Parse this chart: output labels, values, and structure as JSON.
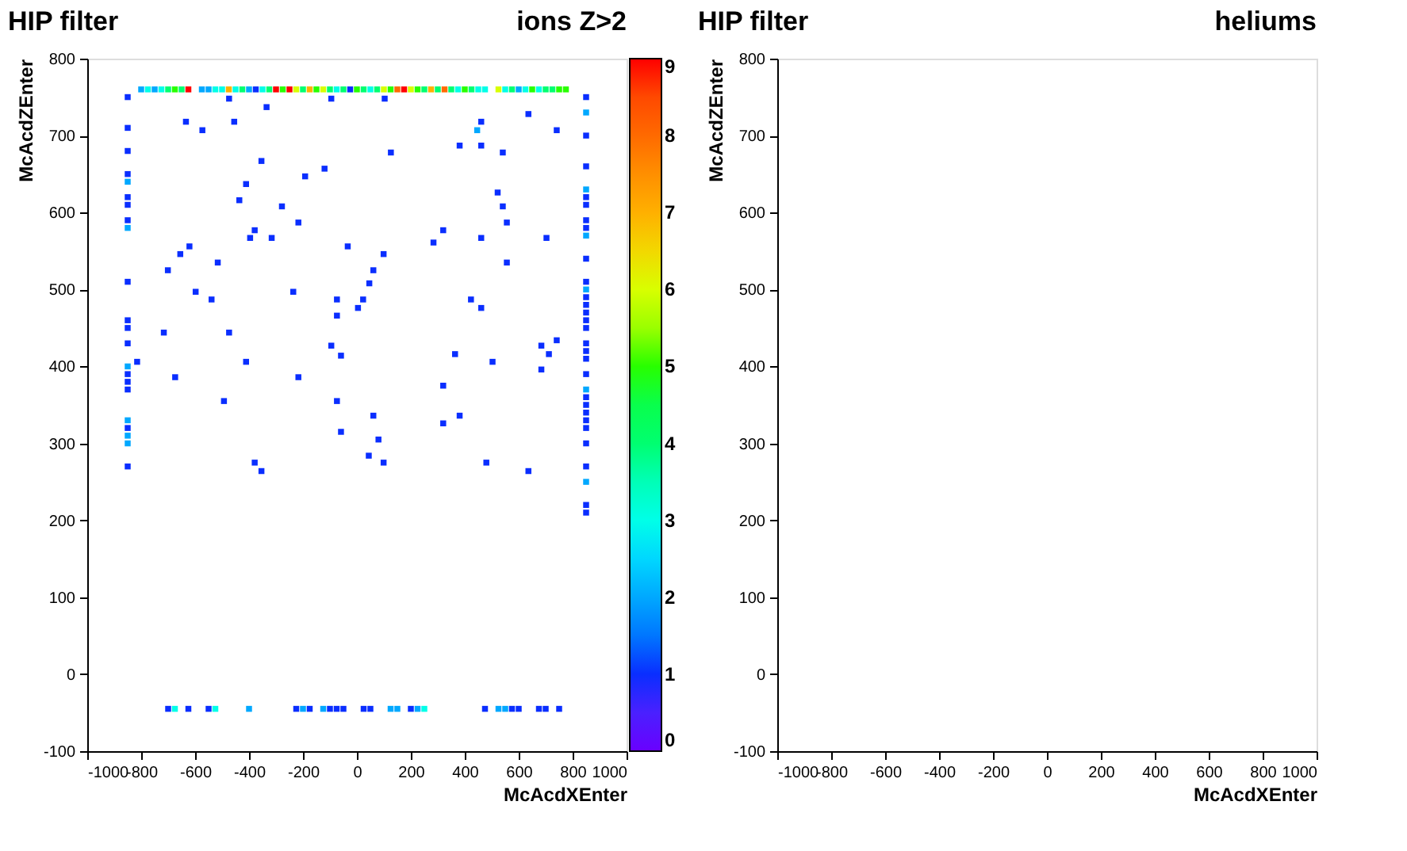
{
  "chart_data": [
    {
      "type": "scatter",
      "title": "HIP filter",
      "annotations": [
        "ions Z>2"
      ],
      "xlabel": "McAcdXEnter",
      "ylabel": "McAcdZEnter",
      "marker": "square",
      "xlim": [
        -1000,
        1000
      ],
      "xticks": [
        -1000,
        -800,
        -600,
        -400,
        -200,
        0,
        200,
        400,
        600,
        800,
        1000
      ],
      "ylim": [
        -100,
        800
      ],
      "yticks": [
        -100,
        0,
        100,
        200,
        300,
        400,
        500,
        600,
        700,
        800
      ],
      "clim": [
        0,
        9
      ],
      "cticks": [
        0,
        1,
        2,
        3,
        4,
        5,
        6,
        7,
        8,
        9
      ],
      "x": [
        -800,
        -775,
        -750,
        -725,
        -700,
        -675,
        -650,
        -625,
        -575,
        -550,
        -525,
        -500,
        -475,
        -450,
        -425,
        -400,
        -375,
        -350,
        -325,
        -300,
        -275,
        -250,
        -225,
        -200,
        -175,
        -150,
        -125,
        -100,
        -75,
        -50,
        -25,
        0,
        25,
        50,
        75,
        100,
        125,
        150,
        175,
        200,
        225,
        250,
        275,
        300,
        325,
        350,
        375,
        400,
        425,
        450,
        475,
        525,
        550,
        575,
        600,
        625,
        650,
        675,
        700,
        725,
        750,
        775,
        -700,
        -675,
        -625,
        -550,
        -525,
        -400,
        -225,
        -200,
        -175,
        -125,
        -100,
        -75,
        -50,
        25,
        50,
        125,
        150,
        200,
        225,
        250,
        475,
        525,
        550,
        575,
        600,
        675,
        700,
        750,
        -850,
        -850,
        -850,
        -850,
        -850,
        -850,
        -850,
        -850,
        -850,
        -850,
        -850,
        -850,
        -850,
        -850,
        -850,
        -850,
        -850,
        -850,
        -850,
        -850,
        -850,
        -850,
        850,
        850,
        850,
        850,
        850,
        850,
        850,
        850,
        850,
        850,
        850,
        850,
        850,
        850,
        850,
        850,
        850,
        850,
        850,
        850,
        850,
        850,
        850,
        850,
        850,
        850,
        850,
        850,
        850,
        850,
        850,
        850,
        850,
        -474,
        -335,
        -95,
        103,
        -634,
        -573,
        -455,
        636,
        461,
        446,
        741,
        -354,
        126,
        381,
        461,
        541,
        -192,
        -120,
        -411,
        -436,
        -278,
        522,
        541,
        -379,
        -217,
        556,
        -396,
        -316,
        703,
        320,
        284,
        461,
        -621,
        -655,
        -34,
        99,
        -701,
        -516,
        61,
        556,
        -598,
        -236,
        -539,
        -74,
        23,
        46,
        423,
        461,
        4,
        -74,
        -716,
        -474,
        741,
        684,
        -95,
        -59,
        364,
        712,
        -815,
        -411,
        503,
        684,
        -674,
        -217,
        320,
        -493,
        -74,
        61,
        381,
        320,
        -59,
        80,
        44,
        99,
        -379,
        -354,
        480,
        636
      ],
      "values": [
        760,
        760,
        760,
        760,
        760,
        760,
        760,
        760,
        760,
        760,
        760,
        760,
        760,
        760,
        760,
        760,
        760,
        760,
        760,
        760,
        760,
        760,
        760,
        760,
        760,
        760,
        760,
        760,
        760,
        760,
        760,
        760,
        760,
        760,
        760,
        760,
        760,
        760,
        760,
        760,
        760,
        760,
        760,
        760,
        760,
        760,
        760,
        760,
        760,
        760,
        760,
        760,
        760,
        760,
        760,
        760,
        760,
        760,
        760,
        760,
        760,
        760,
        -45,
        -45,
        -45,
        -45,
        -45,
        -45,
        -45,
        -45,
        -45,
        -45,
        -45,
        -45,
        -45,
        -45,
        -45,
        -45,
        -45,
        -45,
        -45,
        -45,
        -45,
        -45,
        -45,
        -45,
        -45,
        -45,
        -45,
        -45,
        750,
        710,
        680,
        650,
        640,
        620,
        610,
        590,
        580,
        510,
        460,
        450,
        430,
        400,
        390,
        380,
        370,
        330,
        320,
        310,
        300,
        270,
        750,
        730,
        700,
        660,
        630,
        620,
        610,
        590,
        580,
        570,
        540,
        510,
        500,
        490,
        480,
        470,
        460,
        450,
        430,
        420,
        410,
        390,
        370,
        360,
        350,
        340,
        330,
        320,
        300,
        270,
        250,
        220,
        210,
        748,
        737,
        748,
        748,
        718,
        707,
        718,
        728,
        718,
        707,
        707,
        667,
        678,
        687,
        687,
        678,
        647,
        657,
        637,
        616,
        608,
        626,
        608,
        577,
        587,
        587,
        567,
        567,
        567,
        577,
        561,
        567,
        556,
        546,
        556,
        546,
        525,
        535,
        525,
        535,
        497,
        497,
        487,
        487,
        487,
        508,
        487,
        476,
        476,
        466,
        444,
        444,
        434,
        427,
        427,
        414,
        416,
        416,
        406,
        406,
        406,
        396,
        386,
        386,
        375,
        355,
        355,
        336,
        336,
        326,
        315,
        305,
        284,
        275,
        275,
        264,
        275,
        264
      ],
      "cvalues": [
        2,
        3,
        2,
        3,
        4,
        5,
        4,
        9,
        2,
        2,
        3,
        3,
        7,
        3,
        4,
        2,
        1,
        3,
        4,
        9,
        5,
        9,
        6,
        4,
        7,
        5,
        6,
        4,
        3,
        4,
        1,
        5,
        4,
        3,
        4,
        6,
        5,
        8,
        9,
        6,
        5,
        4,
        7,
        4,
        8,
        4,
        3,
        5,
        4,
        3,
        3,
        6,
        3,
        4,
        2,
        3,
        5,
        3,
        4,
        4,
        5,
        5,
        1,
        3,
        1,
        1,
        3,
        2,
        1,
        2,
        1,
        2,
        1,
        1,
        1,
        1,
        1,
        2,
        2,
        1,
        2,
        3,
        1,
        2,
        2,
        1,
        1,
        1,
        1,
        1,
        1,
        1,
        1,
        1,
        2,
        1,
        1,
        1,
        2,
        1,
        1,
        1,
        1,
        2,
        1,
        1,
        1,
        2,
        1,
        2,
        2,
        1,
        1,
        2,
        1,
        1,
        2,
        1,
        1,
        1,
        1,
        2,
        1,
        1,
        2,
        1,
        1,
        1,
        1,
        1,
        1,
        1,
        1,
        1,
        2,
        1,
        1,
        1,
        1,
        1,
        1,
        1,
        2,
        1,
        1,
        1,
        1,
        1,
        1,
        1,
        1,
        1,
        1,
        1,
        2,
        1,
        1,
        1,
        1,
        1,
        1,
        1,
        1,
        1,
        1,
        1,
        1,
        1,
        1,
        1,
        1,
        1,
        1,
        1,
        1,
        1,
        1,
        1,
        1,
        1,
        1,
        1,
        1,
        1,
        1,
        1,
        1,
        1,
        1,
        1,
        1,
        1,
        1,
        1,
        1,
        1,
        1,
        1,
        1,
        1,
        1,
        1,
        1,
        1,
        1,
        1,
        1,
        1,
        1,
        1,
        1,
        1,
        1,
        1,
        1,
        1,
        1,
        1,
        1,
        1,
        1,
        1,
        1
      ]
    },
    {
      "type": "scatter",
      "title": "HIP filter",
      "annotations": [
        "heliums"
      ],
      "xlabel": "McAcdXEnter",
      "ylabel": "McAcdZEnter",
      "marker": "square",
      "xlim": [
        -1000,
        1000
      ],
      "xticks": [
        -1000,
        -800,
        -600,
        -400,
        -200,
        0,
        200,
        400,
        600,
        800,
        1000
      ],
      "ylim": [
        -100,
        800
      ],
      "yticks": [
        -100,
        0,
        100,
        200,
        300,
        400,
        500,
        600,
        700,
        800
      ]
    }
  ]
}
